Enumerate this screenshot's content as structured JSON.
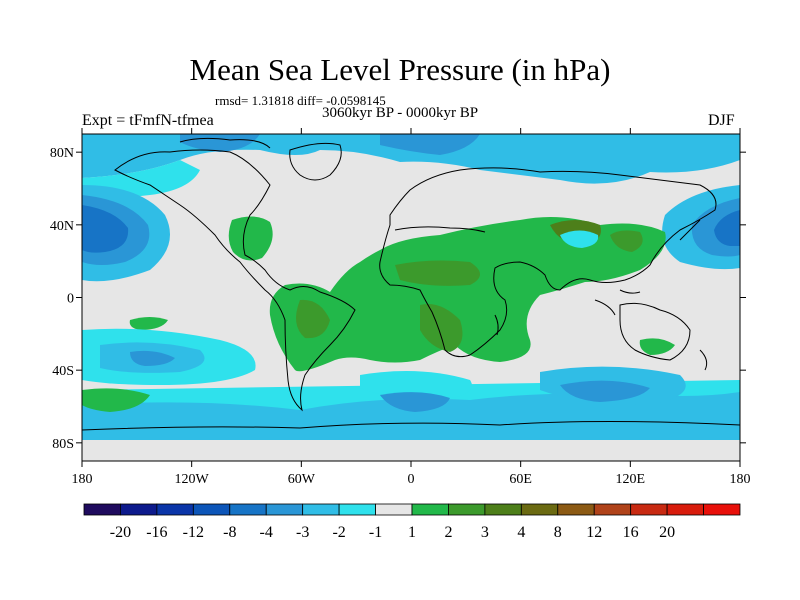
{
  "title": "Mean Sea Level Pressure (in hPa)",
  "stats": "rmsd= 1.31818 diff= -0.0598145",
  "period": "3060kyr BP - 0000kyr BP",
  "experiment": "Expt = tFmfN-tfmea",
  "season": "DJF",
  "axes": {
    "lat_ticks": [
      {
        "label": "80N",
        "value": 80
      },
      {
        "label": "40N",
        "value": 40
      },
      {
        "label": "0",
        "value": 0
      },
      {
        "label": "40S",
        "value": -40
      },
      {
        "label": "80S",
        "value": -80
      }
    ],
    "lon_ticks": [
      {
        "label": "180",
        "value": -180
      },
      {
        "label": "120W",
        "value": -120
      },
      {
        "label": "60W",
        "value": -60
      },
      {
        "label": "0",
        "value": 0
      },
      {
        "label": "60E",
        "value": 60
      },
      {
        "label": "120E",
        "value": 120
      },
      {
        "label": "180",
        "value": 180
      }
    ],
    "lon_range": [
      -180,
      180
    ],
    "lat_range": [
      -90,
      90
    ]
  },
  "colorbar": {
    "colors": [
      "#1f0b5e",
      "#0d1a8c",
      "#0a35a8",
      "#0c55b8",
      "#1774c6",
      "#2a96d6",
      "#30bde6",
      "#2fe1ec",
      "#e6e6e6",
      "#22b84a",
      "#3c9a2c",
      "#4d7f1a",
      "#6b6a12",
      "#8c5a14",
      "#b0431a",
      "#c82a12",
      "#d81c0c",
      "#e8100a"
    ],
    "labels": [
      "-20",
      "-16",
      "-12",
      "-8",
      "-4",
      "-3",
      "-2",
      "-1",
      "1",
      "2",
      "3",
      "4",
      "8",
      "12",
      "16",
      "20"
    ]
  }
}
